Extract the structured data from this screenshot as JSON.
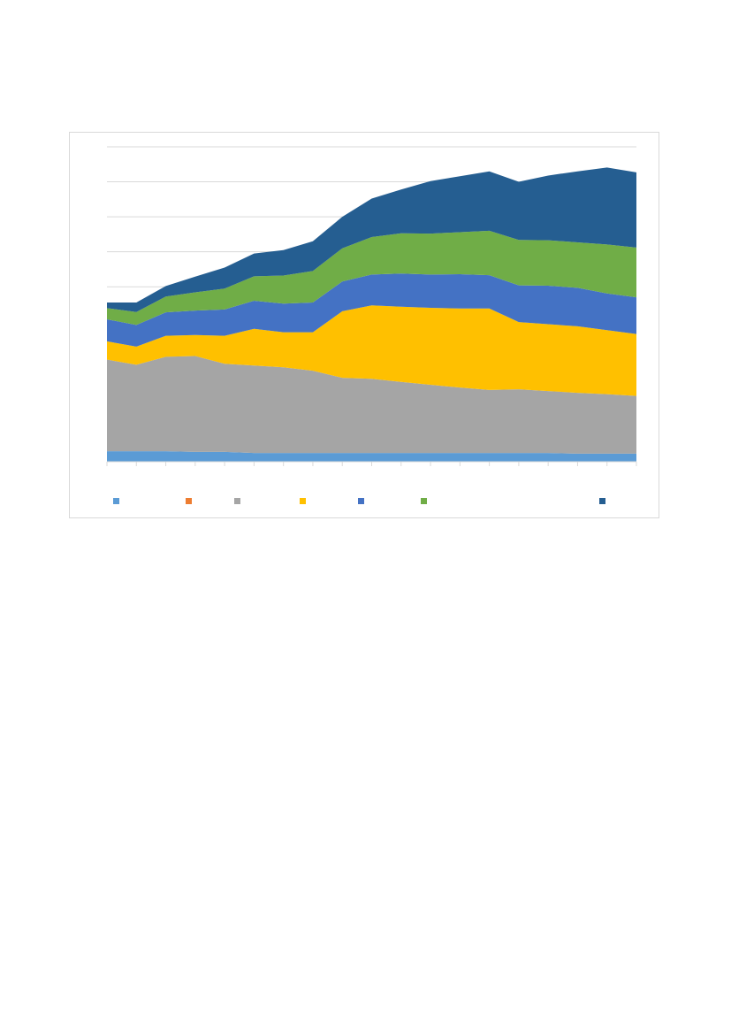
{
  "chart_data": {
    "type": "area",
    "stacked": true,
    "title": "",
    "xlabel": "",
    "ylabel": "",
    "ylim": [
      0,
      9
    ],
    "y_gridlines": [
      0,
      1,
      2,
      3,
      4,
      5,
      6,
      7,
      8,
      9
    ],
    "grid": true,
    "legend_position": "bottom",
    "x": [
      1,
      2,
      3,
      4,
      5,
      6,
      7,
      8,
      9,
      10,
      11,
      12,
      13,
      14,
      15,
      16,
      17,
      18,
      19
    ],
    "series": [
      {
        "color": "#5b9bd5",
        "values": [
          0.3,
          0.3,
          0.3,
          0.28,
          0.28,
          0.25,
          0.25,
          0.25,
          0.25,
          0.25,
          0.25,
          0.25,
          0.25,
          0.25,
          0.25,
          0.25,
          0.23,
          0.23,
          0.23
        ]
      },
      {
        "color": "#ed7d31",
        "values": [
          0,
          0,
          0,
          0,
          0,
          0,
          0,
          0,
          0,
          0,
          0,
          0,
          0,
          0,
          0,
          0,
          0,
          0,
          0
        ]
      },
      {
        "color": "#a5a5a5",
        "values": [
          2.62,
          2.47,
          2.7,
          2.74,
          2.52,
          2.5,
          2.45,
          2.35,
          2.15,
          2.12,
          2.03,
          1.95,
          1.87,
          1.8,
          1.82,
          1.77,
          1.74,
          1.7,
          1.65
        ]
      },
      {
        "color": "#ffc000",
        "values": [
          0.52,
          0.52,
          0.6,
          0.6,
          0.8,
          1.05,
          1.0,
          1.1,
          1.9,
          2.1,
          2.15,
          2.2,
          2.26,
          2.33,
          1.92,
          1.91,
          1.9,
          1.83,
          1.77
        ]
      },
      {
        "color": "#4472c4",
        "values": [
          0.63,
          0.62,
          0.67,
          0.7,
          0.75,
          0.8,
          0.82,
          0.85,
          0.85,
          0.88,
          0.95,
          0.95,
          0.98,
          0.95,
          1.05,
          1.1,
          1.1,
          1.05,
          1.05
        ]
      },
      {
        "color": "#70ad47",
        "values": [
          0.32,
          0.37,
          0.45,
          0.52,
          0.6,
          0.7,
          0.8,
          0.9,
          0.95,
          1.07,
          1.15,
          1.17,
          1.2,
          1.27,
          1.3,
          1.3,
          1.3,
          1.4,
          1.42
        ]
      },
      {
        "color": "#255e91",
        "values": [
          0.16,
          0.27,
          0.3,
          0.45,
          0.6,
          0.65,
          0.73,
          0.85,
          0.9,
          1.1,
          1.25,
          1.5,
          1.6,
          1.7,
          1.66,
          1.85,
          2.03,
          2.2,
          2.15
        ]
      }
    ]
  }
}
